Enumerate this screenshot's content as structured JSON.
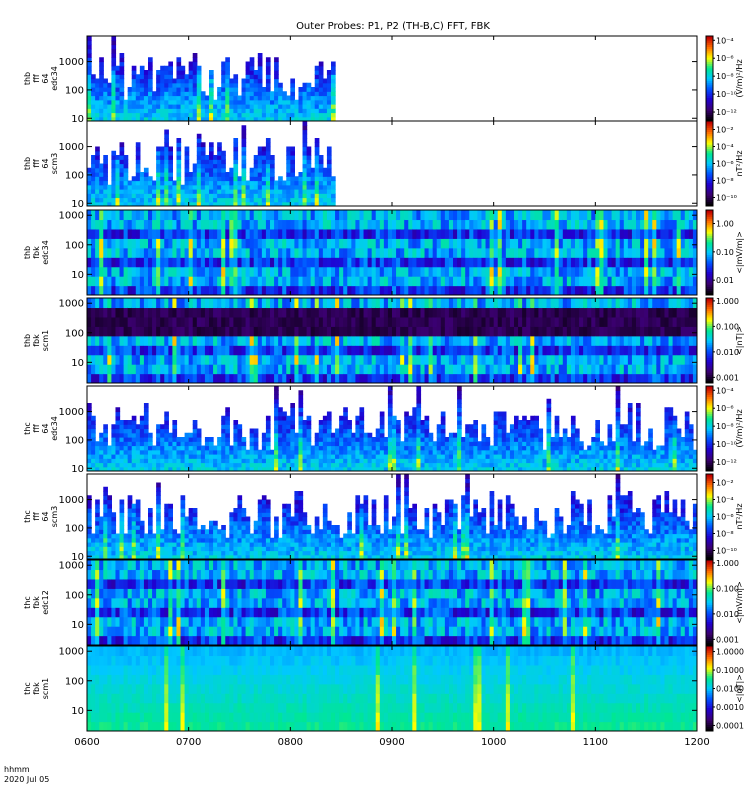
{
  "chart_data": {
    "type": "heatmap",
    "title": "Outer Probes: P1, P2 (TH-B,C) FFT, FBK",
    "time_axis": {
      "ticks": [
        "0600",
        "0700",
        "0800",
        "0900",
        "1000",
        "1100",
        "1200"
      ],
      "tick_hours": [
        6,
        7,
        8,
        9,
        10,
        11,
        12
      ],
      "range_hours": [
        6,
        12
      ],
      "label_line1": "hhmm",
      "label_line2": "2020 Jul 05"
    },
    "panels": [
      {
        "id": "thb-fft-edc34",
        "ylabel": [
          "thb",
          "fff",
          "64",
          "edc34"
        ],
        "yticks": [
          "10",
          "100",
          "1000"
        ],
        "ytick_values": [
          10,
          100,
          1000
        ],
        "yrange": [
          8,
          8000
        ],
        "data_end_hours": 8.4,
        "colorbar_label": "(V/m)²/Hz",
        "colorbar_ticks": [
          "10⁻¹²",
          "10⁻¹⁰",
          "10⁻⁸",
          "10⁻⁶",
          "10⁻⁴"
        ],
        "colorbar_values": [
          1e-12,
          1e-10,
          1e-08,
          1e-06,
          0.0001
        ],
        "colorbar_range": [
          1e-13,
          0.0003
        ]
      },
      {
        "id": "thb-fft-scm3",
        "ylabel": [
          "thb",
          "fff",
          "64",
          "scm3"
        ],
        "yticks": [
          "10",
          "100",
          "1000"
        ],
        "ytick_values": [
          10,
          100,
          1000
        ],
        "yrange": [
          8,
          8000
        ],
        "data_end_hours": 8.4,
        "colorbar_label": "nT²/Hz",
        "colorbar_ticks": [
          "10⁻¹⁰",
          "10⁻⁸",
          "10⁻⁶",
          "10⁻⁴",
          "10⁻²"
        ],
        "colorbar_values": [
          1e-10,
          1e-08,
          1e-06,
          0.0001,
          0.01
        ],
        "colorbar_range": [
          1e-11,
          0.1
        ]
      },
      {
        "id": "thb-fbk-edc34",
        "ylabel": [
          "thb",
          "fbk",
          "edc34"
        ],
        "yticks": [
          "10",
          "100",
          "1000"
        ],
        "ytick_values": [
          10,
          100,
          1000
        ],
        "yrange": [
          2,
          1500
        ],
        "data_end_hours": 12,
        "colorbar_label": "<|mV/m|>",
        "colorbar_ticks": [
          "0.01",
          "0.10",
          "1.00"
        ],
        "colorbar_values": [
          0.01,
          0.1,
          1
        ],
        "colorbar_range": [
          0.003,
          3
        ]
      },
      {
        "id": "thb-fbk-scm1",
        "ylabel": [
          "thb",
          "fbk",
          "scm1"
        ],
        "yticks": [
          "10",
          "100",
          "1000"
        ],
        "ytick_values": [
          10,
          100,
          1000
        ],
        "yrange": [
          2,
          1500
        ],
        "data_end_hours": 12,
        "colorbar_label": "<|nT|>",
        "colorbar_ticks": [
          "0.001",
          "0.010",
          "0.100",
          "1.000"
        ],
        "colorbar_values": [
          0.001,
          0.01,
          0.1,
          1
        ],
        "colorbar_range": [
          0.0006,
          1.3
        ]
      },
      {
        "id": "thc-fft-edc34",
        "ylabel": [
          "thc",
          "fff",
          "64",
          "edc34"
        ],
        "yticks": [
          "10",
          "100",
          "1000"
        ],
        "ytick_values": [
          10,
          100,
          1000
        ],
        "yrange": [
          8,
          8000
        ],
        "data_end_hours": 12,
        "colorbar_label": "(V/m)²/Hz",
        "colorbar_ticks": [
          "10⁻¹²",
          "10⁻¹⁰",
          "10⁻⁸",
          "10⁻⁶",
          "10⁻⁴"
        ],
        "colorbar_values": [
          1e-12,
          1e-10,
          1e-08,
          1e-06,
          0.0001
        ],
        "colorbar_range": [
          1e-13,
          0.0003
        ]
      },
      {
        "id": "thc-fft-scm3",
        "ylabel": [
          "thc",
          "fff",
          "64",
          "scm3"
        ],
        "yticks": [
          "10",
          "100",
          "1000"
        ],
        "ytick_values": [
          10,
          100,
          1000
        ],
        "yrange": [
          8,
          8000
        ],
        "data_end_hours": 12,
        "colorbar_label": "nT²/Hz",
        "colorbar_ticks": [
          "10⁻¹⁰",
          "10⁻⁸",
          "10⁻⁶",
          "10⁻⁴",
          "10⁻²"
        ],
        "colorbar_values": [
          1e-10,
          1e-08,
          1e-06,
          0.0001,
          0.01
        ],
        "colorbar_range": [
          1e-11,
          0.1
        ]
      },
      {
        "id": "thc-fbk-edc12",
        "ylabel": [
          "thc",
          "fbk",
          "edc12"
        ],
        "yticks": [
          "10",
          "100",
          "1000"
        ],
        "ytick_values": [
          10,
          100,
          1000
        ],
        "yrange": [
          2,
          1500
        ],
        "data_end_hours": 12,
        "colorbar_label": "<|mV/m|>",
        "colorbar_ticks": [
          "0.001",
          "0.010",
          "0.100",
          "1.000"
        ],
        "colorbar_values": [
          0.001,
          0.01,
          0.1,
          1
        ],
        "colorbar_range": [
          0.0006,
          1.3
        ]
      },
      {
        "id": "thc-fbk-scm1",
        "ylabel": [
          "thc",
          "fbk",
          "scm1"
        ],
        "yticks": [
          "10",
          "100",
          "1000"
        ],
        "ytick_values": [
          10,
          100,
          1000
        ],
        "yrange": [
          2,
          1500
        ],
        "data_end_hours": 12,
        "colorbar_label": "<|nT|>",
        "colorbar_ticks": [
          "0.0001",
          "0.0010",
          "0.0100",
          "0.1000",
          "1.0000"
        ],
        "colorbar_values": [
          0.0001,
          0.001,
          0.01,
          0.1,
          1
        ],
        "colorbar_range": [
          5e-05,
          2
        ]
      }
    ],
    "colormap": [
      "#000000",
      "#3b0070",
      "#2000d0",
      "#0050ff",
      "#00c8ff",
      "#00e890",
      "#ffff00",
      "#ff7000",
      "#c00000"
    ],
    "grid": false
  }
}
